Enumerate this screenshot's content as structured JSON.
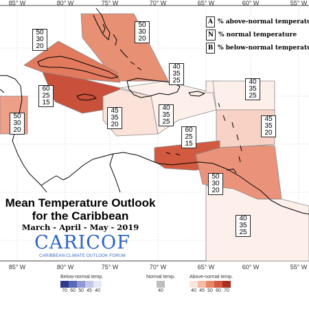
{
  "map": {
    "title_line1": "Mean Temperature Outlook",
    "title_line2": "for the Caribbean",
    "subtitle": "March - April - May - 2019",
    "logo": {
      "name": "CARICOF",
      "full_name": "CARIBBEAN CLIMATE OUTLOOK FORUM",
      "color": "#2b63c5"
    },
    "longitude_labels": [
      "85° W",
      "80° W",
      "75° W",
      "70° W",
      "65° W",
      "60° W",
      "55° W"
    ],
    "legend": [
      {
        "key": "A",
        "label": "% above-normal temperature"
      },
      {
        "key": "N",
        "label": "% normal temperature"
      },
      {
        "key": "B",
        "label": "% below-normal temperature"
      }
    ],
    "regions": [
      {
        "id": "bahamas",
        "above": "50",
        "normal": "30",
        "below": "20",
        "fill": "#e89074"
      },
      {
        "id": "cuba",
        "above": "50",
        "normal": "30",
        "below": "20",
        "fill": "#e27a5e"
      },
      {
        "id": "jamaica-cayman",
        "above": "60",
        "normal": "25",
        "below": "15",
        "fill": "#c9503a"
      },
      {
        "id": "belize",
        "above": "50",
        "normal": "30",
        "below": "20",
        "fill": "#ee9f87"
      },
      {
        "id": "central-caribbean",
        "above": "45",
        "normal": "35",
        "below": "20",
        "fill": "#fbe3da"
      },
      {
        "id": "hispaniola",
        "above": "40",
        "normal": "35",
        "below": "25",
        "fill": "#fdf0eb"
      },
      {
        "id": "turks-caicos",
        "above": "40",
        "normal": "35",
        "below": "25",
        "fill": "#fdf0eb"
      },
      {
        "id": "northern-lesser-antilles",
        "above": "40",
        "normal": "35",
        "below": "25",
        "fill": "#fdf0eb"
      },
      {
        "id": "leeward-islands",
        "above": "45",
        "normal": "35",
        "below": "20",
        "fill": "#f8d2c4"
      },
      {
        "id": "venezuela-coast",
        "above": "60",
        "normal": "25",
        "below": "15",
        "fill": "#d25a40"
      },
      {
        "id": "windward-trinidad",
        "above": "50",
        "normal": "30",
        "below": "20",
        "fill": "#ea937a"
      },
      {
        "id": "guianas",
        "above": "40",
        "normal": "35",
        "below": "25",
        "fill": "#fdf0eb"
      }
    ],
    "colorbar": {
      "below": {
        "title": "Below-normal temp.",
        "ticks": [
          "70",
          "60",
          "50",
          "45",
          "40"
        ],
        "colors": [
          "#2e3a8c",
          "#5a68b8",
          "#8f99d2",
          "#c1c7e8",
          "#e6e8f6"
        ]
      },
      "normal": {
        "title": "Normal temp.",
        "ticks": [
          "40"
        ],
        "colors": [
          "#bdbdbd"
        ]
      },
      "above": {
        "title": "Above-normal temp.",
        "ticks": [
          "40",
          "45",
          "50",
          "60",
          "70"
        ],
        "colors": [
          "#fbe6de",
          "#f5b9a5",
          "#e8866a",
          "#d25a40",
          "#a9301f"
        ]
      }
    }
  }
}
